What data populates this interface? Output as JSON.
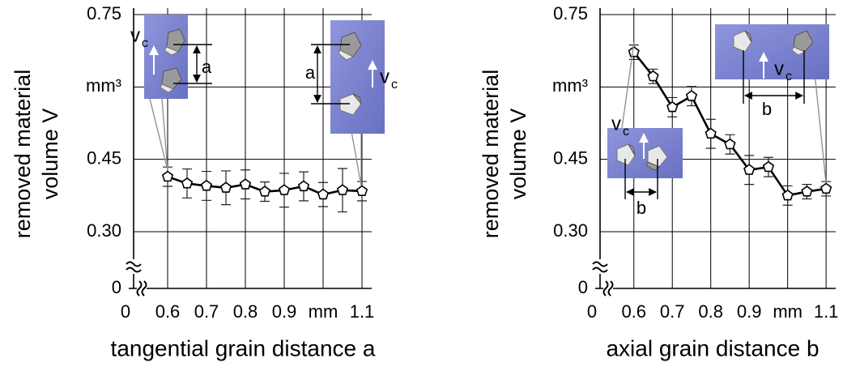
{
  "chart_data": [
    {
      "type": "line",
      "y_label": [
        "removed material",
        "volume V"
      ],
      "x_label": "tangential grain distance a",
      "x": [
        0.6,
        0.65,
        0.7,
        0.75,
        0.8,
        0.85,
        0.9,
        0.95,
        1.0,
        1.05,
        1.1
      ],
      "values": [
        0.414,
        0.4,
        0.395,
        0.391,
        0.398,
        0.383,
        0.386,
        0.394,
        0.377,
        0.386,
        0.384
      ],
      "errors": [
        0.02,
        0.03,
        0.03,
        0.035,
        0.03,
        0.02,
        0.035,
        0.03,
        0.025,
        0.045,
        0.02
      ],
      "color": "#000000",
      "marker_fill": "#ffffff",
      "xlim": [
        0.55,
        1.125
      ],
      "ylim": [
        0.3,
        0.75
      ],
      "xticks": [
        0,
        0.6,
        0.7,
        0.8,
        0.9,
        {
          "value": 1.0,
          "label": "mm"
        },
        1.1
      ],
      "yticks": [
        0,
        {
          "value": 0.3,
          "label": "0.30"
        },
        0.45,
        {
          "value": 0.6,
          "label": "mm³"
        },
        0.75
      ],
      "grid": true,
      "insets": [
        {
          "velocity": "v",
          "velocity_subscript": "c",
          "distance": "a"
        },
        {
          "velocity": "v",
          "velocity_subscript": "c",
          "distance": "a"
        }
      ]
    },
    {
      "type": "line",
      "y_label": [
        "removed material",
        "volume V"
      ],
      "x_label": "axial grain distance b",
      "x": [
        0.6,
        0.65,
        0.7,
        0.75,
        0.8,
        0.85,
        0.9,
        0.95,
        1.0,
        1.05,
        1.1
      ],
      "values": [
        0.672,
        0.622,
        0.558,
        0.581,
        0.503,
        0.481,
        0.428,
        0.434,
        0.375,
        0.383,
        0.389
      ],
      "errors": [
        0.015,
        0.015,
        0.02,
        0.02,
        0.03,
        0.02,
        0.03,
        0.02,
        0.02,
        0.015,
        0.015
      ],
      "color": "#000000",
      "marker_fill": "#ffffff",
      "xlim": [
        0.55,
        1.125
      ],
      "ylim": [
        0.3,
        0.75
      ],
      "xticks": [
        0,
        0.6,
        0.7,
        0.8,
        0.9,
        {
          "value": 1.0,
          "label": "mm"
        },
        1.1
      ],
      "yticks": [
        0,
        {
          "value": 0.3,
          "label": "0.30"
        },
        0.45,
        {
          "value": 0.6,
          "label": "mm³"
        },
        0.75
      ],
      "grid": true,
      "insets": [
        {
          "velocity": "v",
          "velocity_subscript": "c",
          "distance": "b"
        },
        {
          "velocity": "v",
          "velocity_subscript": "c",
          "distance": "b"
        }
      ]
    }
  ]
}
